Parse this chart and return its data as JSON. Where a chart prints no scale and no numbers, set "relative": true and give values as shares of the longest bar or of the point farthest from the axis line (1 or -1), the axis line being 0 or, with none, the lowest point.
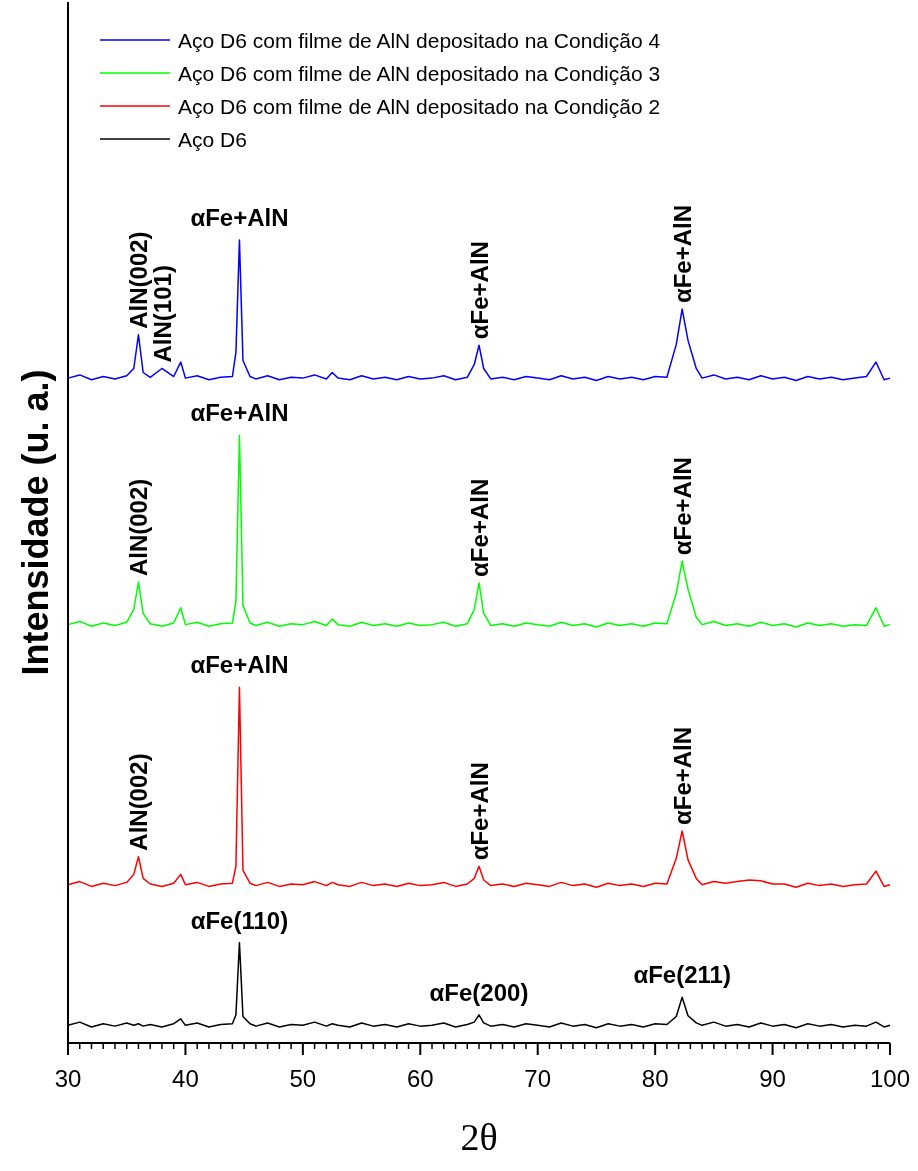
{
  "chart_data": {
    "type": "line",
    "relative": true,
    "xlabel": "2θ",
    "ylabel": "Intensidade (u. a.)",
    "legend": "top left",
    "line_style": "solid",
    "grid": false,
    "xlim": [
      30,
      100
    ],
    "xticks": [
      30,
      40,
      50,
      60,
      70,
      80,
      90,
      100
    ],
    "x": [
      30,
      31,
      32,
      33,
      34,
      35,
      35.6,
      36,
      36.4,
      37,
      38,
      39,
      39.6,
      40,
      41,
      42,
      43,
      44,
      44.3,
      44.6,
      44.9,
      45.5,
      46,
      47,
      48,
      49,
      50,
      51,
      52,
      52.5,
      53,
      54,
      55,
      56,
      57,
      58,
      59,
      60,
      61,
      62,
      63,
      64,
      64.6,
      65,
      65.4,
      66,
      67,
      68,
      69,
      70,
      71,
      72,
      73,
      74,
      75,
      76,
      77,
      78,
      79,
      80,
      81,
      81.8,
      82.3,
      82.8,
      83.5,
      84,
      85,
      86,
      87,
      88,
      89,
      90,
      91,
      92,
      93,
      94,
      95,
      96,
      97,
      98,
      98.8,
      99.5,
      100
    ],
    "series": [
      {
        "name": "Aço D6 com filme de AlN depositado na Condição 4",
        "color": "#0000ff",
        "values": [
          0.828,
          0.832,
          0.826,
          0.83,
          0.827,
          0.831,
          0.84,
          0.882,
          0.835,
          0.829,
          0.84,
          0.83,
          0.848,
          0.828,
          0.831,
          0.826,
          0.829,
          0.83,
          0.86,
          1.0,
          0.85,
          0.83,
          0.827,
          0.831,
          0.826,
          0.829,
          0.828,
          0.832,
          0.827,
          0.835,
          0.828,
          0.826,
          0.831,
          0.827,
          0.829,
          0.826,
          0.83,
          0.827,
          0.828,
          0.831,
          0.826,
          0.829,
          0.845,
          0.869,
          0.84,
          0.827,
          0.829,
          0.826,
          0.83,
          0.828,
          0.826,
          0.831,
          0.827,
          0.829,
          0.825,
          0.83,
          0.827,
          0.829,
          0.826,
          0.83,
          0.829,
          0.87,
          0.914,
          0.875,
          0.84,
          0.828,
          0.832,
          0.827,
          0.829,
          0.826,
          0.831,
          0.827,
          0.829,
          0.825,
          0.83,
          0.827,
          0.829,
          0.826,
          0.828,
          0.83,
          0.848,
          0.826,
          0.828
        ]
      },
      {
        "name": "Aço D6 com filme de AlN depositado na Condição 3",
        "color": "#00ff00",
        "values": [
          0.521,
          0.525,
          0.519,
          0.523,
          0.52,
          0.524,
          0.54,
          0.574,
          0.535,
          0.522,
          0.519,
          0.523,
          0.542,
          0.521,
          0.524,
          0.519,
          0.522,
          0.523,
          0.55,
          0.757,
          0.545,
          0.523,
          0.52,
          0.524,
          0.519,
          0.522,
          0.521,
          0.525,
          0.52,
          0.528,
          0.521,
          0.519,
          0.524,
          0.52,
          0.522,
          0.519,
          0.523,
          0.52,
          0.521,
          0.524,
          0.519,
          0.522,
          0.54,
          0.573,
          0.535,
          0.52,
          0.522,
          0.519,
          0.523,
          0.521,
          0.519,
          0.524,
          0.52,
          0.522,
          0.518,
          0.523,
          0.52,
          0.522,
          0.519,
          0.523,
          0.522,
          0.56,
          0.6,
          0.565,
          0.53,
          0.521,
          0.525,
          0.52,
          0.522,
          0.519,
          0.524,
          0.52,
          0.522,
          0.518,
          0.523,
          0.52,
          0.522,
          0.519,
          0.521,
          0.52,
          0.542,
          0.519,
          0.521
        ]
      },
      {
        "name": "Aço D6 com filme de AlN depositado na Condição 2",
        "color": "#ff0000",
        "values": [
          0.197,
          0.201,
          0.195,
          0.199,
          0.196,
          0.2,
          0.21,
          0.232,
          0.205,
          0.198,
          0.195,
          0.199,
          0.21,
          0.197,
          0.2,
          0.195,
          0.198,
          0.199,
          0.22,
          0.443,
          0.215,
          0.199,
          0.196,
          0.2,
          0.195,
          0.198,
          0.197,
          0.201,
          0.196,
          0.2,
          0.197,
          0.195,
          0.2,
          0.196,
          0.198,
          0.195,
          0.199,
          0.196,
          0.197,
          0.2,
          0.195,
          0.198,
          0.205,
          0.22,
          0.203,
          0.196,
          0.198,
          0.195,
          0.199,
          0.197,
          0.195,
          0.2,
          0.196,
          0.198,
          0.194,
          0.199,
          0.196,
          0.198,
          0.195,
          0.199,
          0.198,
          0.23,
          0.264,
          0.228,
          0.205,
          0.197,
          0.201,
          0.199,
          0.201,
          0.203,
          0.202,
          0.198,
          0.198,
          0.194,
          0.199,
          0.196,
          0.198,
          0.195,
          0.197,
          0.198,
          0.214,
          0.195,
          0.197
        ]
      },
      {
        "name": "Aço D6",
        "color": "#000000",
        "values": [
          0.022,
          0.026,
          0.02,
          0.024,
          0.021,
          0.025,
          0.022,
          0.024,
          0.021,
          0.023,
          0.02,
          0.024,
          0.03,
          0.022,
          0.025,
          0.02,
          0.023,
          0.024,
          0.035,
          0.125,
          0.033,
          0.024,
          0.021,
          0.025,
          0.02,
          0.023,
          0.022,
          0.026,
          0.021,
          0.024,
          0.022,
          0.02,
          0.025,
          0.021,
          0.023,
          0.02,
          0.024,
          0.021,
          0.022,
          0.025,
          0.02,
          0.023,
          0.026,
          0.035,
          0.025,
          0.021,
          0.023,
          0.02,
          0.024,
          0.022,
          0.02,
          0.025,
          0.021,
          0.023,
          0.019,
          0.024,
          0.021,
          0.023,
          0.02,
          0.024,
          0.023,
          0.033,
          0.057,
          0.034,
          0.025,
          0.022,
          0.026,
          0.021,
          0.023,
          0.02,
          0.025,
          0.021,
          0.023,
          0.019,
          0.024,
          0.021,
          0.023,
          0.02,
          0.022,
          0.021,
          0.026,
          0.02,
          0.022
        ]
      }
    ],
    "annotations": [
      {
        "text": "AlN(002)",
        "x": 36,
        "y": 0.882
      },
      {
        "text": "AlN(101)",
        "x": 38,
        "y": 0.84
      },
      {
        "text": "αFe+AlN",
        "x": 44.6,
        "y": 1.0
      },
      {
        "text": "αFe+AlN",
        "x": 65,
        "y": 0.869
      },
      {
        "text": "αFe+AlN",
        "x": 82.3,
        "y": 0.914
      },
      {
        "text": "AlN(002)",
        "x": 36,
        "y": 0.574
      },
      {
        "text": "αFe+AlN",
        "x": 44.6,
        "y": 0.757
      },
      {
        "text": "αFe+AlN",
        "x": 65,
        "y": 0.573
      },
      {
        "text": "αFe+AlN",
        "x": 82.3,
        "y": 0.6
      },
      {
        "text": "AlN(002)",
        "x": 36,
        "y": 0.232
      },
      {
        "text": "αFe+AlN",
        "x": 44.6,
        "y": 0.443
      },
      {
        "text": "αFe+AlN",
        "x": 65,
        "y": 0.22
      },
      {
        "text": "αFe+AlN",
        "x": 82.3,
        "y": 0.264
      },
      {
        "text": "αFe(110)",
        "x": 44.6,
        "y": 0.125
      },
      {
        "text": "αFe(200)",
        "x": 65,
        "y": 0.035
      },
      {
        "text": "αFe(211)",
        "x": 82.3,
        "y": 0.057
      }
    ]
  }
}
